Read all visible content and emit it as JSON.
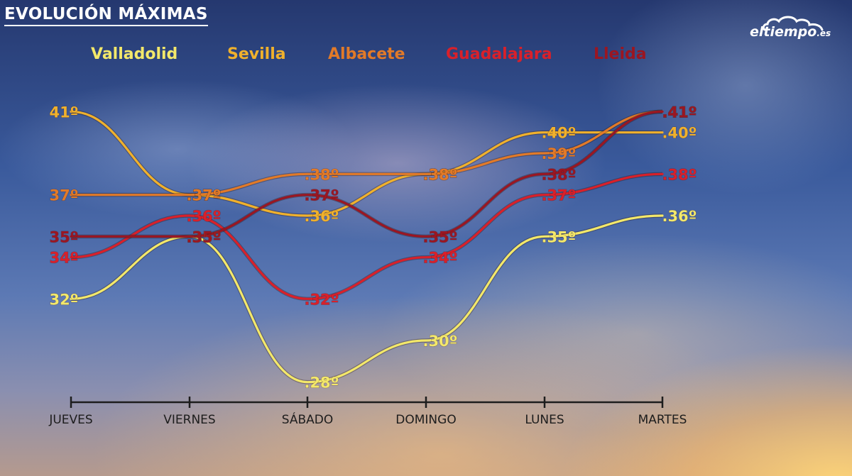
{
  "title": "EVOLUCIÓN MÁXIMAS",
  "logo": {
    "text": "eltiempo",
    "suffix": ".es"
  },
  "chart_data": {
    "type": "line",
    "categories": [
      "JUEVES",
      "VIERNES",
      "SÁBADO",
      "DOMINGO",
      "LUNES",
      "MARTES"
    ],
    "title": "EVOLUCIÓN MÁXIMAS",
    "xlabel": "",
    "ylabel": "",
    "ylim": [
      27,
      42
    ],
    "grid": false,
    "legend_position": "top",
    "unit_suffix": "º",
    "series": [
      {
        "name": "Valladolid",
        "color": "#f3e86a",
        "values": [
          32,
          35,
          28,
          30,
          35,
          36
        ]
      },
      {
        "name": "Sevilla",
        "color": "#f0b12c",
        "values": [
          41,
          37,
          36,
          38,
          40,
          40
        ]
      },
      {
        "name": "Albacete",
        "color": "#e27a28",
        "values": [
          37,
          37,
          38,
          38,
          39,
          41
        ]
      },
      {
        "name": "Guadalajara",
        "color": "#d9202a",
        "values": [
          34,
          36,
          32,
          34,
          37,
          38
        ]
      },
      {
        "name": "Lleida",
        "color": "#9a1622",
        "values": [
          35,
          35,
          37,
          35,
          38,
          41
        ]
      }
    ]
  }
}
